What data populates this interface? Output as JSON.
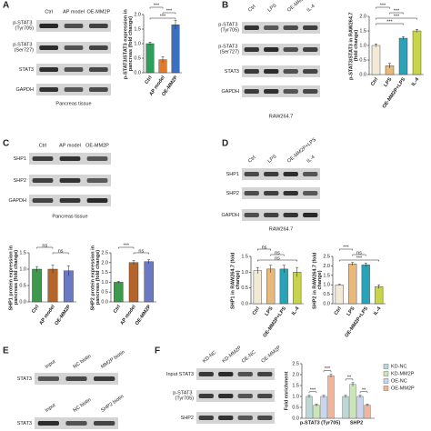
{
  "panel_labels": [
    "A",
    "B",
    "C",
    "D",
    "E",
    "F"
  ],
  "blots": [
    {
      "lanes": [
        "Ctrl",
        "AP model",
        "OE-MM2P"
      ],
      "rows": [
        "p-STAT3 (Tyr705)",
        "p-STAT3 (Ser727)",
        "STAT3",
        "GAPDH"
      ],
      "caption": "Pancreas tissue"
    },
    {
      "lanes": [
        "Ctrl",
        "LPS",
        "OE-MM2P+LPS",
        "IL-4"
      ],
      "rows": [
        "p-STAT3 (Tyr705)",
        "p-STAT3 (Ser727)",
        "STAT3",
        "GAPDH"
      ],
      "caption": "RAW264.7"
    },
    {
      "lanes": [
        "Ctrl",
        "AP model",
        "OE-MM2P"
      ],
      "rows": [
        "SHP1",
        "SHP2",
        "GAPDH"
      ],
      "caption": "Pancreas tissue"
    },
    {
      "lanes": [
        "Ctrl",
        "LPS",
        "OE-MM2P+LPS",
        "IL-4"
      ],
      "rows": [
        "SHP1",
        "SHP2",
        "GAPDH"
      ],
      "caption": "RAW264.7"
    },
    {
      "lanes": [
        "Input",
        "NC biotin",
        "MM2P biotin"
      ],
      "rows": [
        "STAT3"
      ]
    },
    {
      "lanes": [
        "Input",
        "NC biotin",
        "SHP2 biotin"
      ],
      "rows": [
        "STAT3"
      ]
    },
    {
      "lanes": [
        "KD-NC",
        "KD-MM2P",
        "OE-NC",
        "OE-MM2P"
      ],
      "rows": [
        "Input STAT3",
        "p-STAT3 (Tyr705)",
        "SHP2"
      ]
    }
  ],
  "chart_data": [
    {
      "type": "bar",
      "ylabel": "p-STAT3/STAT3 expression in pancreas (fold change)",
      "categories": [
        "Ctrl",
        "AP model",
        "OE-MM2P"
      ],
      "values": [
        1.0,
        0.45,
        1.65
      ],
      "errors": [
        0.05,
        0.1,
        0.15
      ],
      "colors": [
        "#2e9e5b",
        "#e07b2a",
        "#3b6fc4"
      ],
      "ylim": [
        0,
        2
      ],
      "yticks": [
        {
          "value": 0,
          "label": "0.0"
        },
        0.5,
        {
          "value": 1,
          "label": "1.0"
        },
        1.5,
        {
          "value": 2,
          "label": "2.0"
        }
      ],
      "annotations": [
        {
          "text": "***",
          "from": 0,
          "to": 1
        },
        {
          "text": "***",
          "from": 1,
          "to": 2
        },
        {
          "text": "***",
          "from": 0,
          "to": 2
        }
      ]
    },
    {
      "type": "bar",
      "ylabel": "p-STAT3/STAT3 in RAW264.7 (fold change)",
      "categories": [
        "Ctrl",
        "LPS",
        "OE-MM2P+LPS",
        "IL-4"
      ],
      "values": [
        1.0,
        0.3,
        1.25,
        1.5
      ],
      "errors": [
        0.05,
        0.08,
        0.05,
        0.05
      ],
      "colors": [
        "#f3ead6",
        "#e9b97a",
        "#2aa3b8",
        "#c8d44a"
      ],
      "ylim": [
        0,
        2
      ],
      "yticks": [
        {
          "value": 0,
          "label": "0.0"
        },
        0.5,
        {
          "value": 1,
          "label": "1.0"
        },
        1.5,
        {
          "value": 2,
          "label": "2.0"
        }
      ],
      "annotations": [
        {
          "text": "***",
          "from": 0,
          "to": 1
        },
        {
          "text": "***",
          "from": 1,
          "to": 2
        },
        {
          "text": "***",
          "from": 0,
          "to": 3
        },
        {
          "text": "***",
          "from": 0,
          "to": 2
        }
      ]
    },
    {
      "type": "bar",
      "ylabel": "SHP1 protein expression in pancreas (fold change)",
      "categories": [
        "Ctrl",
        "AP model",
        "OE-MM2P"
      ],
      "values": [
        1.0,
        1.0,
        0.95
      ],
      "errors": [
        0.08,
        0.12,
        0.15
      ],
      "colors": [
        "#3d9a4d",
        "#b5652a",
        "#6b78c4"
      ],
      "ylim": [
        0,
        1.5
      ],
      "yticks": [
        {
          "value": 0,
          "label": "0.0"
        },
        0.5,
        {
          "value": 1,
          "label": "1.0"
        },
        1.5
      ],
      "annotations": [
        {
          "text": "ns",
          "from": 0,
          "to": 1
        },
        {
          "text": "ns",
          "from": 1,
          "to": 2
        }
      ]
    },
    {
      "type": "bar",
      "ylabel": "SHP2 protein expression in pancreas (fold change)",
      "categories": [
        "Ctrl",
        "AP model",
        "OE-MM2P"
      ],
      "values": [
        1.0,
        2.0,
        2.05
      ],
      "errors": [
        0.05,
        0.1,
        0.1
      ],
      "colors": [
        "#3d9a4d",
        "#b5652a",
        "#6b78c4"
      ],
      "ylim": [
        0,
        2.5
      ],
      "yticks": [
        {
          "value": 0,
          "label": "0.0"
        },
        0.5,
        {
          "value": 1,
          "label": "1.0"
        },
        1.5,
        {
          "value": 2,
          "label": "2.0"
        },
        2.5
      ],
      "annotations": [
        {
          "text": "***",
          "from": 0,
          "to": 1
        },
        {
          "text": "ns",
          "from": 1,
          "to": 2
        }
      ]
    },
    {
      "type": "bar",
      "ylabel": "SHP1 in RAW264.7 (fold change)",
      "categories": [
        "Ctrl",
        "LPS",
        "OE-MM2P+LPS",
        "IL-4"
      ],
      "values": [
        1.05,
        1.1,
        1.1,
        1.0
      ],
      "errors": [
        0.1,
        0.12,
        0.12,
        0.15
      ],
      "colors": [
        "#f3ead6",
        "#e9b97a",
        "#2aa3b8",
        "#c8d44a"
      ],
      "ylim": [
        0,
        1.5
      ],
      "yticks": [
        {
          "value": 0,
          "label": "0.0"
        },
        0.5,
        {
          "value": 1,
          "label": "1.0"
        },
        1.5
      ],
      "annotations": [
        {
          "text": "ns",
          "from": 0,
          "to": 1
        },
        {
          "text": "ns",
          "from": 1,
          "to": 2
        },
        {
          "text": "ns",
          "from": 0,
          "to": 3
        }
      ]
    },
    {
      "type": "bar",
      "ylabel": "SHP2 in RAW264.7 (fold change)",
      "categories": [
        "Ctrl",
        "LPS",
        "OE-MM2P+LPS",
        "IL-4"
      ],
      "values": [
        1.0,
        2.1,
        2.05,
        0.9
      ],
      "errors": [
        0.03,
        0.08,
        0.1,
        0.1
      ],
      "colors": [
        "#f3ead6",
        "#e9b97a",
        "#2aa3b8",
        "#c8d44a"
      ],
      "ylim": [
        0,
        2.5
      ],
      "yticks": [
        {
          "value": 0,
          "label": "0.0"
        },
        0.5,
        {
          "value": 1,
          "label": "1.0"
        },
        1.5,
        {
          "value": 2,
          "label": "2.0"
        },
        2.5
      ],
      "annotations": [
        {
          "text": "***",
          "from": 0,
          "to": 1
        },
        {
          "text": "ns",
          "from": 1,
          "to": 2
        },
        {
          "text": "***",
          "from": 0,
          "to": 3
        }
      ]
    },
    {
      "type": "grouped-bar",
      "ylabel": "Fold enrichment",
      "categories": [
        "p-STAT3 (Tyr705)",
        "SHP2"
      ],
      "series": [
        {
          "name": "KD-NC",
          "color": "#b9d8d6",
          "values": [
            1.0,
            1.0
          ],
          "errors": [
            0.05,
            0.05
          ]
        },
        {
          "name": "KD-MM2P",
          "color": "#c9e6b4",
          "values": [
            0.6,
            1.55
          ],
          "errors": [
            0.05,
            0.08
          ]
        },
        {
          "name": "OE-NC",
          "color": "#c9d6ee",
          "values": [
            1.0,
            1.0
          ],
          "errors": [
            0.05,
            0.05
          ]
        },
        {
          "name": "OE-MM2P",
          "color": "#f0b59a",
          "values": [
            1.95,
            0.6
          ],
          "errors": [
            0.06,
            0.05
          ]
        }
      ],
      "ylim": [
        0,
        2.5
      ],
      "yticks": [
        {
          "value": 0,
          "label": "0.0"
        },
        0.5,
        {
          "value": 1,
          "label": "1.0"
        },
        1.5,
        {
          "value": 2,
          "label": "2.0"
        },
        2.5
      ],
      "annotations": [
        {
          "text": "***",
          "category": 0,
          "from": 0,
          "to": 1
        },
        {
          "text": "***",
          "category": 0,
          "from": 2,
          "to": 3
        },
        {
          "text": "**",
          "category": 1,
          "from": 0,
          "to": 1
        },
        {
          "text": "**",
          "category": 1,
          "from": 2,
          "to": 3
        }
      ]
    }
  ]
}
